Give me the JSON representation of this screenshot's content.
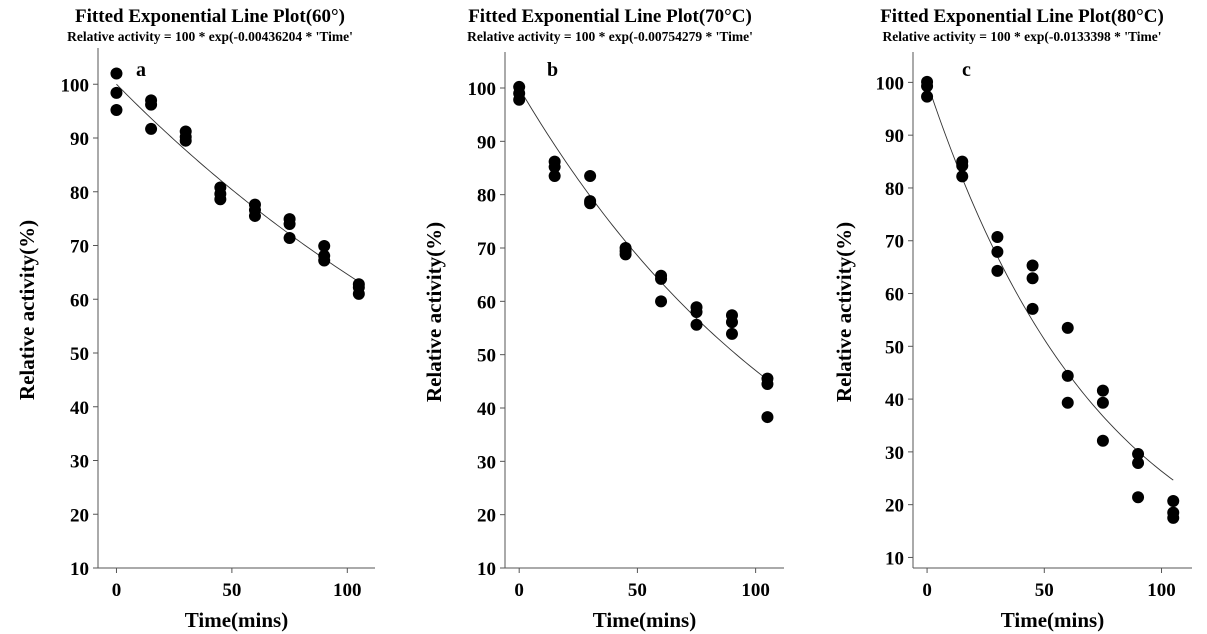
{
  "chart_data": [
    {
      "type": "scatter",
      "title": "Fitted Exponential Line Plot(60°)",
      "subtitle": "Relative activity = 100 * exp(-0.00436204 * 'Time'",
      "panel_label": "a",
      "xlabel": "Time(mins)",
      "ylabel": "Relative activity(%)",
      "xlim": [
        -8,
        112
      ],
      "ylim": [
        10,
        106
      ],
      "xticks": [
        0,
        50,
        100
      ],
      "yticks": [
        10,
        20,
        30,
        40,
        50,
        60,
        70,
        80,
        90,
        100
      ],
      "grid": false,
      "fit": {
        "type": "exponential",
        "a": 100,
        "k": -0.00436204,
        "x_range": [
          0,
          105
        ]
      },
      "series": [
        {
          "x": [
            0,
            0,
            0,
            15,
            15,
            15,
            30,
            30,
            30,
            45,
            45,
            45,
            60,
            60,
            60,
            75,
            75,
            75,
            90,
            90,
            90,
            105,
            105,
            105
          ],
          "y": [
            102.0,
            98.4,
            95.2,
            97.0,
            96.2,
            91.7,
            91.2,
            90.2,
            89.5,
            80.8,
            79.6,
            78.6,
            77.6,
            76.6,
            75.5,
            74.9,
            74.0,
            71.4,
            69.9,
            68.1,
            67.2,
            62.8,
            62.2,
            61.0
          ]
        }
      ]
    },
    {
      "type": "scatter",
      "title": "Fitted Exponential  Line Plot(70°C)",
      "subtitle": "Relative activity = 100 * exp(-0.00754279 * 'Time'",
      "panel_label": "b",
      "xlabel": "Time(mins)",
      "ylabel": "Relative activity(%)",
      "xlim": [
        -6,
        112
      ],
      "ylim": [
        10,
        106
      ],
      "xticks": [
        0,
        50,
        100
      ],
      "yticks": [
        10,
        20,
        30,
        40,
        50,
        60,
        70,
        80,
        90,
        100
      ],
      "grid": false,
      "fit": {
        "type": "exponential",
        "a": 100,
        "k": -0.00754279,
        "x_range": [
          0,
          105
        ]
      },
      "series": [
        {
          "x": [
            0,
            0,
            0,
            15,
            15,
            15,
            30,
            30,
            30,
            45,
            45,
            45,
            60,
            60,
            60,
            75,
            75,
            75,
            90,
            90,
            90,
            105,
            105,
            105
          ],
          "y": [
            100.2,
            99.0,
            97.8,
            86.2,
            85.2,
            83.5,
            83.5,
            78.8,
            78.4,
            70.0,
            69.4,
            68.8,
            64.8,
            64.2,
            60.0,
            58.9,
            58.0,
            55.6,
            57.4,
            56.1,
            53.9,
            45.5,
            44.5,
            38.3
          ]
        }
      ]
    },
    {
      "type": "scatter",
      "title": "Fitted Exponential  Line Plot(80°C)",
      "subtitle": "Relative activity = 100 * exp(-0.0133398 * 'Time'",
      "panel_label": "c",
      "xlabel": "Time(mins)",
      "ylabel": "Relative activity(%)",
      "xlim": [
        -6,
        113
      ],
      "ylim": [
        8,
        105
      ],
      "xticks": [
        0,
        50,
        100
      ],
      "yticks": [
        10,
        20,
        30,
        40,
        50,
        60,
        70,
        80,
        90,
        100
      ],
      "grid": false,
      "fit": {
        "type": "exponential",
        "a": 100,
        "k": -0.0133398,
        "x_range": [
          0,
          105
        ]
      },
      "series": [
        {
          "x": [
            0,
            0,
            0,
            15,
            15,
            15,
            30,
            30,
            30,
            45,
            45,
            45,
            60,
            60,
            60,
            75,
            75,
            75,
            90,
            90,
            90,
            105,
            105,
            105
          ],
          "y": [
            100.1,
            99.3,
            97.3,
            85.0,
            84.2,
            82.2,
            70.7,
            67.9,
            64.3,
            65.3,
            62.9,
            57.1,
            53.5,
            44.4,
            39.3,
            41.6,
            39.3,
            32.1,
            29.6,
            27.9,
            21.4,
            20.7,
            18.5,
            17.5
          ]
        }
      ]
    }
  ]
}
